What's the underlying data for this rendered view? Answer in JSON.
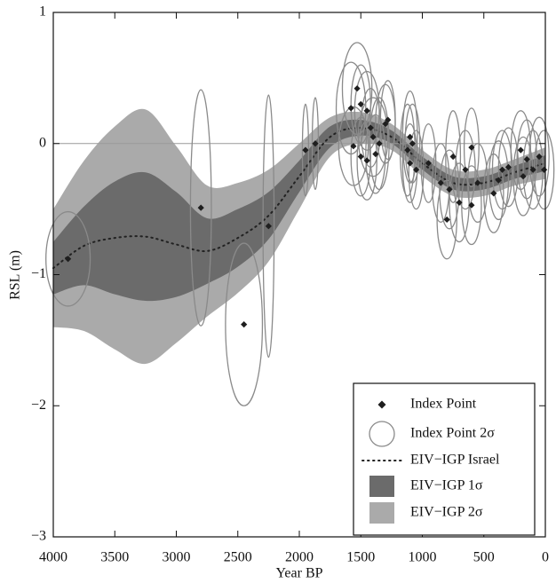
{
  "chart_data": {
    "type": "scatter",
    "x_label": "Year BP",
    "y_label": "RSL (m)",
    "xlim": [
      4000,
      0
    ],
    "ylim": [
      -3,
      1
    ],
    "xticks": [
      4000,
      3500,
      3000,
      2500,
      2000,
      1500,
      1000,
      500,
      0
    ],
    "yticks": [
      {
        "value": -3,
        "label": "−3"
      },
      {
        "value": -2,
        "label": "−2"
      },
      {
        "value": -1,
        "label": "−1"
      },
      0,
      1
    ],
    "hline": 0,
    "index_points": {
      "name": "Index Point",
      "color": "#1e1e1e",
      "x": [
        3880,
        2800,
        2450,
        2250,
        1950,
        1870,
        1580,
        1530,
        1500,
        1450,
        1420,
        1400,
        1560,
        1500,
        1450,
        1380,
        1300,
        1280,
        1350,
        1100,
        1120,
        1080,
        1100,
        1050,
        950,
        850,
        800,
        780,
        750,
        700,
        650,
        600,
        600,
        550,
        420,
        380,
        350,
        300,
        200,
        180,
        150,
        100,
        50,
        10
      ],
      "values": [
        -0.88,
        -0.49,
        -1.38,
        -0.63,
        -0.05,
        0.0,
        0.27,
        0.42,
        0.3,
        0.25,
        0.12,
        0.05,
        -0.02,
        -0.1,
        -0.13,
        -0.08,
        0.15,
        0.18,
        0.0,
        0.05,
        -0.05,
        0.0,
        -0.15,
        -0.2,
        -0.15,
        -0.3,
        -0.58,
        -0.35,
        -0.1,
        -0.45,
        -0.2,
        -0.03,
        -0.47,
        -0.3,
        -0.38,
        -0.28,
        -0.2,
        -0.18,
        -0.05,
        -0.25,
        -0.12,
        -0.2,
        -0.1,
        -0.2
      ]
    },
    "index_point_ellipses": {
      "name": "Index Point 2σ",
      "color": "#8a8a8a",
      "x_err": [
        180,
        85,
        150,
        45,
        25,
        25,
        120,
        120,
        80,
        100,
        80,
        120,
        120,
        80,
        80,
        80,
        80,
        60,
        80,
        60,
        60,
        60,
        60,
        60,
        60,
        70,
        80,
        80,
        60,
        80,
        80,
        60,
        80,
        80,
        80,
        80,
        80,
        80,
        80,
        80,
        80,
        80,
        80,
        80
      ],
      "y_err": [
        0.36,
        0.9,
        0.62,
        1.0,
        0.35,
        0.35,
        0.35,
        0.35,
        0.3,
        0.3,
        0.3,
        0.3,
        0.3,
        0.3,
        0.3,
        0.3,
        0.3,
        0.3,
        0.35,
        0.35,
        0.35,
        0.3,
        0.3,
        0.3,
        0.3,
        0.3,
        0.3,
        0.3,
        0.35,
        0.3,
        0.3,
        0.3,
        0.3,
        0.3,
        0.3,
        0.3,
        0.3,
        0.3,
        0.3,
        0.3,
        0.3,
        0.3,
        0.3,
        0.3
      ]
    },
    "model": {
      "x": [
        4000,
        3750,
        3500,
        3250,
        3000,
        2750,
        2500,
        2250,
        2000,
        1750,
        1500,
        1250,
        1000,
        750,
        500,
        250,
        0
      ],
      "mean": {
        "name": "EIV−IGP Israel",
        "color": "#222222",
        "values": [
          -0.95,
          -0.78,
          -0.72,
          -0.71,
          -0.77,
          -0.82,
          -0.72,
          -0.55,
          -0.25,
          0.05,
          0.12,
          0.05,
          -0.15,
          -0.3,
          -0.3,
          -0.22,
          -0.15
        ]
      },
      "band_1sigma": {
        "name": "EIV−IGP 1σ",
        "color": "#6b6b6b",
        "lower": [
          -1.15,
          -1.08,
          -1.15,
          -1.2,
          -1.17,
          -1.07,
          -0.94,
          -0.73,
          -0.37,
          -0.03,
          0.06,
          0.0,
          -0.2,
          -0.35,
          -0.35,
          -0.27,
          -0.21
        ],
        "upper": [
          -0.75,
          -0.48,
          -0.29,
          -0.22,
          -0.37,
          -0.57,
          -0.5,
          -0.37,
          -0.13,
          0.13,
          0.18,
          0.1,
          -0.1,
          -0.25,
          -0.25,
          -0.17,
          -0.09
        ]
      },
      "band_2sigma": {
        "name": "EIV−IGP 2σ",
        "color": "#aaaaaa",
        "lower": [
          -1.4,
          -1.43,
          -1.57,
          -1.68,
          -1.52,
          -1.32,
          -1.14,
          -0.9,
          -0.5,
          -0.1,
          0.0,
          -0.05,
          -0.25,
          -0.4,
          -0.4,
          -0.32,
          -0.27
        ],
        "upper": [
          -0.5,
          -0.13,
          0.13,
          0.26,
          -0.02,
          -0.32,
          -0.3,
          -0.2,
          0.0,
          0.2,
          0.24,
          0.15,
          -0.05,
          -0.2,
          -0.2,
          -0.12,
          -0.03
        ]
      }
    }
  }
}
